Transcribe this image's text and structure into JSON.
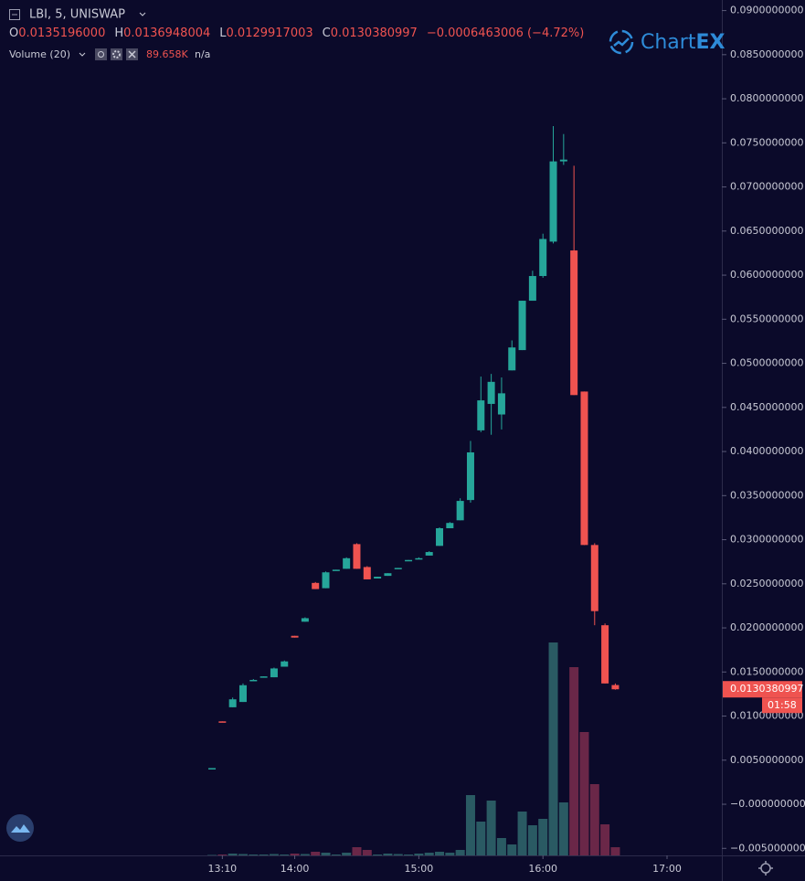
{
  "chart_data": {
    "type": "candlestick",
    "title": "LBI, 5, UNISWAP",
    "ohlc_legend": [
      {
        "key": "O",
        "value": "0.0135196000"
      },
      {
        "key": "H",
        "value": "0.0136948004"
      },
      {
        "key": "L",
        "value": "0.0129917003"
      },
      {
        "key": "C",
        "value": "0.0130380997"
      }
    ],
    "change_label": "−0.0006463006 (−4.72%)",
    "logo": [
      "Chart",
      "EX"
    ],
    "up_color": "#26a69a",
    "down_color": "#ef5350",
    "x": [
      0,
      1,
      2,
      3,
      4,
      5,
      6,
      7,
      8,
      9,
      10,
      11,
      12,
      13,
      14,
      15,
      16,
      17,
      18,
      19,
      20,
      21,
      22,
      23,
      24,
      25,
      26,
      27,
      28,
      29,
      30,
      31,
      32,
      33,
      34,
      35,
      36,
      37,
      38,
      39
    ],
    "xlim": [
      -20.5,
      49.3
    ],
    "xticks": [
      {
        "value": 1,
        "label": "13:10"
      },
      {
        "value": 8,
        "label": "14:00"
      },
      {
        "value": 20,
        "label": "15:00"
      },
      {
        "value": 32,
        "label": "16:00"
      },
      {
        "value": 44,
        "label": "17:00"
      }
    ],
    "ylim": [
      -0.0058,
      0.0912
    ],
    "yticks": [
      {
        "value": 0.09,
        "label": "0.0900000000"
      },
      {
        "value": 0.085,
        "label": "0.0850000000"
      },
      {
        "value": 0.08,
        "label": "0.0800000000"
      },
      {
        "value": 0.075,
        "label": "0.0750000000"
      },
      {
        "value": 0.07,
        "label": "0.0700000000"
      },
      {
        "value": 0.065,
        "label": "0.0650000000"
      },
      {
        "value": 0.06,
        "label": "0.0600000000"
      },
      {
        "value": 0.055,
        "label": "0.0550000000"
      },
      {
        "value": 0.05,
        "label": "0.0500000000"
      },
      {
        "value": 0.045,
        "label": "0.0450000000"
      },
      {
        "value": 0.04,
        "label": "0.0400000000"
      },
      {
        "value": 0.035,
        "label": "0.0350000000"
      },
      {
        "value": 0.03,
        "label": "0.0300000000"
      },
      {
        "value": 0.025,
        "label": "0.0250000000"
      },
      {
        "value": 0.02,
        "label": "0.0200000000"
      },
      {
        "value": 0.015,
        "label": "0.0150000000"
      },
      {
        "value": 0.01,
        "label": "0.0100000000"
      },
      {
        "value": 0.005,
        "label": "0.0050000000"
      },
      {
        "value": 0,
        "label": "−0.0000000000"
      },
      {
        "value": -0.005,
        "label": "−0.0050000000"
      }
    ],
    "grid": false,
    "series": [
      {
        "name": "LBI",
        "open": [
          0.004,
          0.0094,
          0.011,
          0.0116,
          0.014,
          0.0144,
          0.0144,
          0.0156,
          0.0191,
          0.0207,
          0.0251,
          0.0245,
          0.0265,
          0.0267,
          0.0295,
          0.0269,
          0.0256,
          0.0259,
          0.0267,
          0.0276,
          0.0278,
          0.0282,
          0.0293,
          0.0313,
          0.0322,
          0.0345,
          0.0424,
          0.0454,
          0.0442,
          0.0492,
          0.0515,
          0.0571,
          0.0599,
          0.0638,
          0.0729,
          0.0628,
          0.0468,
          0.0294,
          0.0203,
          0.0135196
        ],
        "high": [
          0.0041,
          0.0094,
          0.0121,
          0.0137,
          0.0142,
          0.0145,
          0.0155,
          0.0163,
          0.0191,
          0.0212,
          0.0252,
          0.0264,
          0.0266,
          0.028,
          0.0296,
          0.027,
          0.0258,
          0.0262,
          0.0268,
          0.0277,
          0.028,
          0.0287,
          0.0314,
          0.032,
          0.0347,
          0.0412,
          0.0485,
          0.0488,
          0.0484,
          0.0526,
          0.0571,
          0.0605,
          0.0647,
          0.0769,
          0.076,
          0.0724,
          0.0468,
          0.0296,
          0.0205,
          0.0136948
        ],
        "low": [
          0.004,
          0.0093,
          0.011,
          0.0116,
          0.014,
          0.0144,
          0.0144,
          0.0156,
          0.0189,
          0.0207,
          0.0244,
          0.0245,
          0.0265,
          0.0267,
          0.0267,
          0.0255,
          0.0256,
          0.0259,
          0.0267,
          0.0276,
          0.0278,
          0.0282,
          0.0293,
          0.0313,
          0.0322,
          0.0342,
          0.0422,
          0.0419,
          0.0425,
          0.0492,
          0.0515,
          0.0571,
          0.0597,
          0.0636,
          0.0725,
          0.0464,
          0.0294,
          0.0203,
          0.0137,
          0.0129917
        ],
        "close": [
          0.0041,
          0.0093,
          0.0119,
          0.0135,
          0.0141,
          0.0145,
          0.0154,
          0.0162,
          0.0189,
          0.0211,
          0.0244,
          0.0263,
          0.0266,
          0.0279,
          0.0267,
          0.0255,
          0.0258,
          0.0262,
          0.0268,
          0.0277,
          0.0279,
          0.0286,
          0.0313,
          0.0319,
          0.0344,
          0.0399,
          0.0458,
          0.0479,
          0.0466,
          0.0518,
          0.0571,
          0.0599,
          0.0641,
          0.0729,
          0.0731,
          0.0464,
          0.0294,
          0.0219,
          0.0137,
          0.0130380997
        ]
      }
    ],
    "price_label": "0.0130380997",
    "countdown": "01:58",
    "volume": {
      "name": "Volume (20)",
      "legend_value": "89.658K",
      "ma_label": "n/a",
      "up_color": "#2a5a63",
      "down_color": "#6a2748",
      "values": [
        5000,
        10000,
        20000,
        15000,
        10000,
        10000,
        15000,
        10000,
        20000,
        15000,
        40000,
        30000,
        10000,
        30000,
        90000,
        60000,
        10000,
        20000,
        15000,
        10000,
        20000,
        30000,
        40000,
        30000,
        60000,
        660000,
        370000,
        600000,
        190000,
        120000,
        480000,
        330000,
        400000,
        2330000,
        580000,
        2060000,
        1350000,
        780000,
        340000,
        89658
      ]
    }
  }
}
